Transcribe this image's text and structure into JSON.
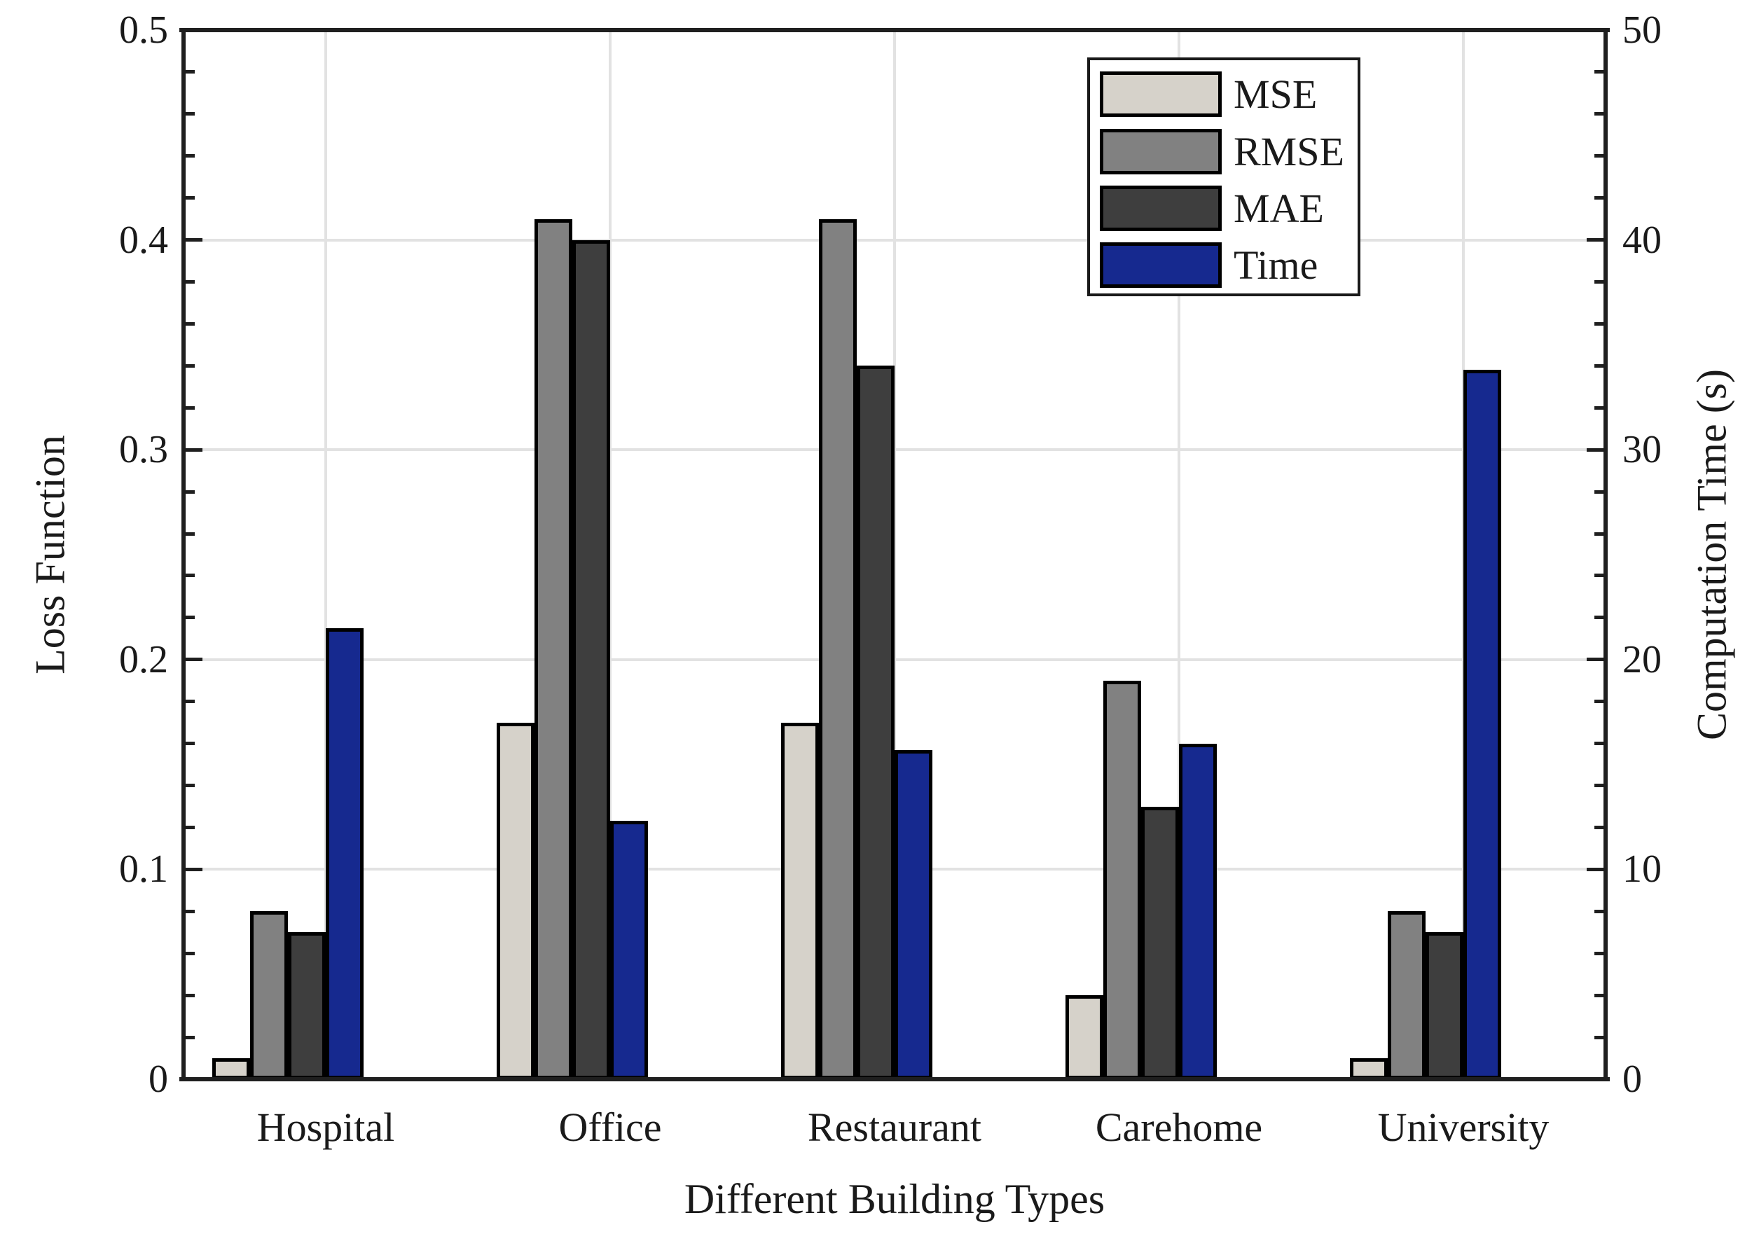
{
  "chart_data": {
    "type": "bar",
    "title": "",
    "categories": [
      "Hospital",
      "Office",
      "Restaurant",
      "Carehome",
      "University"
    ],
    "series": [
      {
        "name": "MSE",
        "axis": "left",
        "color": "#D6D2CA",
        "values": [
          0.01,
          0.17,
          0.17,
          0.04,
          0.01
        ]
      },
      {
        "name": "RMSE",
        "axis": "left",
        "color": "#818181",
        "values": [
          0.08,
          0.41,
          0.41,
          0.19,
          0.08
        ]
      },
      {
        "name": "MAE",
        "axis": "left",
        "color": "#3E3E3E",
        "values": [
          0.07,
          0.4,
          0.34,
          0.13,
          0.07
        ]
      },
      {
        "name": "Time",
        "axis": "right",
        "color": "#16298F",
        "values": [
          21.5,
          12.3,
          15.7,
          16.0,
          33.8
        ]
      }
    ],
    "xlabel": "Different Building Types",
    "ylabel_left": "Loss Function",
    "ylabel_right": "Computation Time (s)",
    "ylim_left": [
      0,
      0.5
    ],
    "ylim_right": [
      0,
      50
    ],
    "ytick_labels_left": [
      "0",
      "0.1",
      "0.2",
      "0.3",
      "0.4",
      "0.5"
    ],
    "ytick_labels_right": [
      "0",
      "10",
      "20",
      "30",
      "40",
      "50"
    ],
    "minor_tick_step_left": 0.02,
    "minor_tick_step_right": 2,
    "grid": "major",
    "legend_entries": [
      "MSE",
      "RMSE",
      "MAE",
      "Time"
    ],
    "legend_position": "upper-right-of-center"
  },
  "styles": {
    "background": "#ffffff",
    "bar_edge_color": "#000000",
    "spine_color": "#1f1f1f",
    "grid_color": "#e2e2e2",
    "text_color": "#1a1a1a"
  }
}
